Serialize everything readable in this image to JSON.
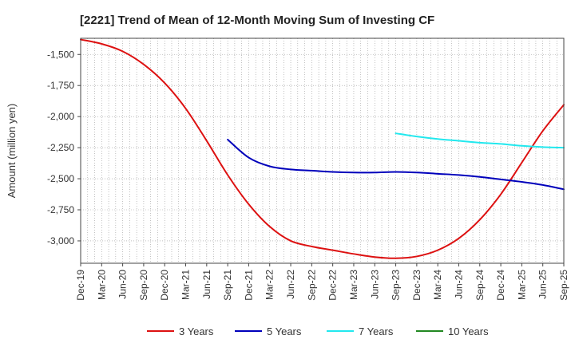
{
  "chart_data": {
    "type": "line",
    "title": "[2221]  Trend of Mean of 12-Month Moving Sum of Investing CF",
    "xlabel": "",
    "ylabel": "Amount (million yen)",
    "ylim": [
      -3180,
      -1370
    ],
    "yticks": [
      -1500,
      -1750,
      -2000,
      -2250,
      -2500,
      -2750,
      -3000
    ],
    "ytick_labels": [
      "-1,500",
      "-1,750",
      "-2,000",
      "-2,250",
      "-2,500",
      "-2,750",
      "-3,000"
    ],
    "x_range": [
      0,
      69
    ],
    "x_ticks": [
      {
        "pos": 0,
        "label": "Dec-19"
      },
      {
        "pos": 3,
        "label": "Mar-20"
      },
      {
        "pos": 6,
        "label": "Jun-20"
      },
      {
        "pos": 9,
        "label": "Sep-20"
      },
      {
        "pos": 12,
        "label": "Dec-20"
      },
      {
        "pos": 15,
        "label": "Mar-21"
      },
      {
        "pos": 18,
        "label": "Jun-21"
      },
      {
        "pos": 21,
        "label": "Sep-21"
      },
      {
        "pos": 24,
        "label": "Dec-21"
      },
      {
        "pos": 27,
        "label": "Mar-22"
      },
      {
        "pos": 30,
        "label": "Jun-22"
      },
      {
        "pos": 33,
        "label": "Sep-22"
      },
      {
        "pos": 36,
        "label": "Dec-22"
      },
      {
        "pos": 39,
        "label": "Mar-23"
      },
      {
        "pos": 42,
        "label": "Jun-23"
      },
      {
        "pos": 45,
        "label": "Sep-23"
      },
      {
        "pos": 48,
        "label": "Dec-23"
      },
      {
        "pos": 51,
        "label": "Mar-24"
      },
      {
        "pos": 54,
        "label": "Jun-24"
      },
      {
        "pos": 57,
        "label": "Sep-24"
      },
      {
        "pos": 60,
        "label": "Dec-24"
      },
      {
        "pos": 63,
        "label": "Mar-25"
      },
      {
        "pos": 66,
        "label": "Jun-25"
      },
      {
        "pos": 69,
        "label": "Sep-25"
      }
    ],
    "grid": true,
    "legend_position": "bottom",
    "series": [
      {
        "name": "3 Years",
        "color": "#dd1111",
        "x": [
          0,
          3,
          6,
          9,
          12,
          15,
          18,
          21,
          24,
          27,
          30,
          33,
          36,
          39,
          42,
          45,
          48,
          51,
          54,
          57,
          60,
          63,
          66,
          69
        ],
        "y": [
          -1380,
          -1415,
          -1475,
          -1580,
          -1730,
          -1935,
          -2195,
          -2470,
          -2705,
          -2885,
          -3000,
          -3045,
          -3075,
          -3105,
          -3130,
          -3140,
          -3125,
          -3075,
          -2980,
          -2830,
          -2625,
          -2370,
          -2115,
          -1905
        ]
      },
      {
        "name": "5 Years",
        "color": "#0000bb",
        "x": [
          21,
          24,
          27,
          30,
          33,
          36,
          39,
          42,
          45,
          48,
          51,
          54,
          57,
          60,
          63,
          66,
          69
        ],
        "y": [
          -2185,
          -2330,
          -2400,
          -2425,
          -2435,
          -2445,
          -2450,
          -2450,
          -2445,
          -2450,
          -2460,
          -2470,
          -2485,
          -2505,
          -2525,
          -2550,
          -2585
        ]
      },
      {
        "name": "7 Years",
        "color": "#22e8ee",
        "x": [
          45,
          48,
          51,
          54,
          57,
          60,
          63,
          66,
          69
        ],
        "y": [
          -2135,
          -2160,
          -2180,
          -2195,
          -2210,
          -2220,
          -2235,
          -2245,
          -2250
        ]
      },
      {
        "name": "10 Years",
        "color": "#228822",
        "x": [],
        "y": []
      }
    ]
  }
}
